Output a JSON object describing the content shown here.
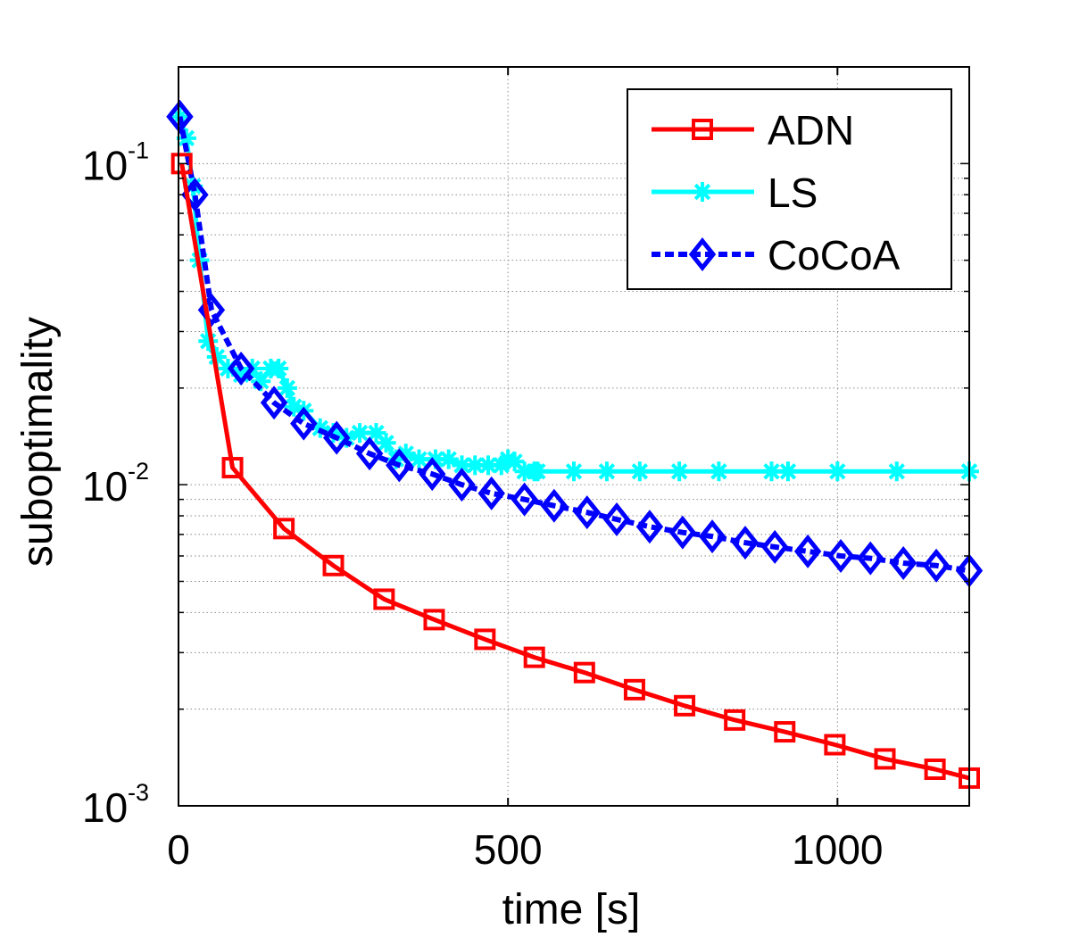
{
  "chart_data": {
    "type": "line",
    "title": "",
    "xlabel": "time [s]",
    "ylabel": "suboptimality",
    "yscale": "log",
    "xlim": [
      0,
      1200
    ],
    "ylim": [
      0.001,
      0.2
    ],
    "grid": true,
    "legend_position": "top-right",
    "x_ticks": [
      {
        "value": 0,
        "label": "0"
      },
      {
        "value": 500,
        "label": "500"
      },
      {
        "value": 1000,
        "label": "1000"
      }
    ],
    "y_ticks": [
      {
        "value": 0.1,
        "base": "10",
        "exp": "-1"
      },
      {
        "value": 0.01,
        "base": "10",
        "exp": "-2"
      },
      {
        "value": 0.001,
        "base": "10",
        "exp": "-3"
      }
    ],
    "series": [
      {
        "name": "ADN",
        "color": "#ff0000",
        "marker": "square",
        "dash": "solid",
        "x": [
          5,
          82,
          160,
          235,
          312,
          388,
          465,
          540,
          616,
          692,
          768,
          844,
          920,
          996,
          1072,
          1148,
          1200
        ],
        "y": [
          0.1,
          0.0113,
          0.0073,
          0.0056,
          0.0044,
          0.0038,
          0.0033,
          0.0029,
          0.0026,
          0.0023,
          0.00205,
          0.00185,
          0.0017,
          0.00155,
          0.0014,
          0.0013,
          0.00122
        ]
      },
      {
        "name": "LS",
        "color": "#00ffff",
        "marker": "asterisk",
        "dash": "solid",
        "x": [
          2,
          12,
          22,
          32,
          45,
          58,
          75,
          95,
          112,
          125,
          140,
          152,
          165,
          175,
          190,
          215,
          235,
          255,
          275,
          300,
          315,
          330,
          345,
          365,
          390,
          410,
          430,
          450,
          470,
          490,
          500,
          510,
          525,
          540,
          545,
          600,
          650,
          700,
          760,
          820,
          900,
          925,
          1000,
          1090,
          1200
        ],
        "y": [
          0.14,
          0.12,
          0.085,
          0.05,
          0.028,
          0.025,
          0.023,
          0.022,
          0.023,
          0.021,
          0.023,
          0.023,
          0.02,
          0.0175,
          0.017,
          0.015,
          0.0145,
          0.014,
          0.0145,
          0.0145,
          0.0135,
          0.012,
          0.0125,
          0.012,
          0.012,
          0.012,
          0.0115,
          0.0115,
          0.0115,
          0.0115,
          0.012,
          0.0118,
          0.011,
          0.011,
          0.011,
          0.011,
          0.011,
          0.011,
          0.011,
          0.011,
          0.011,
          0.011,
          0.011,
          0.011,
          0.011
        ]
      },
      {
        "name": "CoCoA",
        "color": "#0000ff",
        "marker": "diamond",
        "dash": "dashed",
        "x": [
          2,
          25,
          50,
          95,
          145,
          190,
          240,
          290,
          335,
          385,
          430,
          475,
          525,
          570,
          620,
          665,
          715,
          765,
          810,
          860,
          905,
          955,
          1005,
          1050,
          1100,
          1150,
          1200
        ],
        "y": [
          0.14,
          0.08,
          0.035,
          0.023,
          0.018,
          0.0155,
          0.014,
          0.0125,
          0.0115,
          0.0108,
          0.01,
          0.0094,
          0.009,
          0.0086,
          0.0082,
          0.0078,
          0.0074,
          0.0071,
          0.0069,
          0.0066,
          0.0064,
          0.0062,
          0.006,
          0.0059,
          0.0057,
          0.0056,
          0.0054
        ]
      }
    ]
  }
}
